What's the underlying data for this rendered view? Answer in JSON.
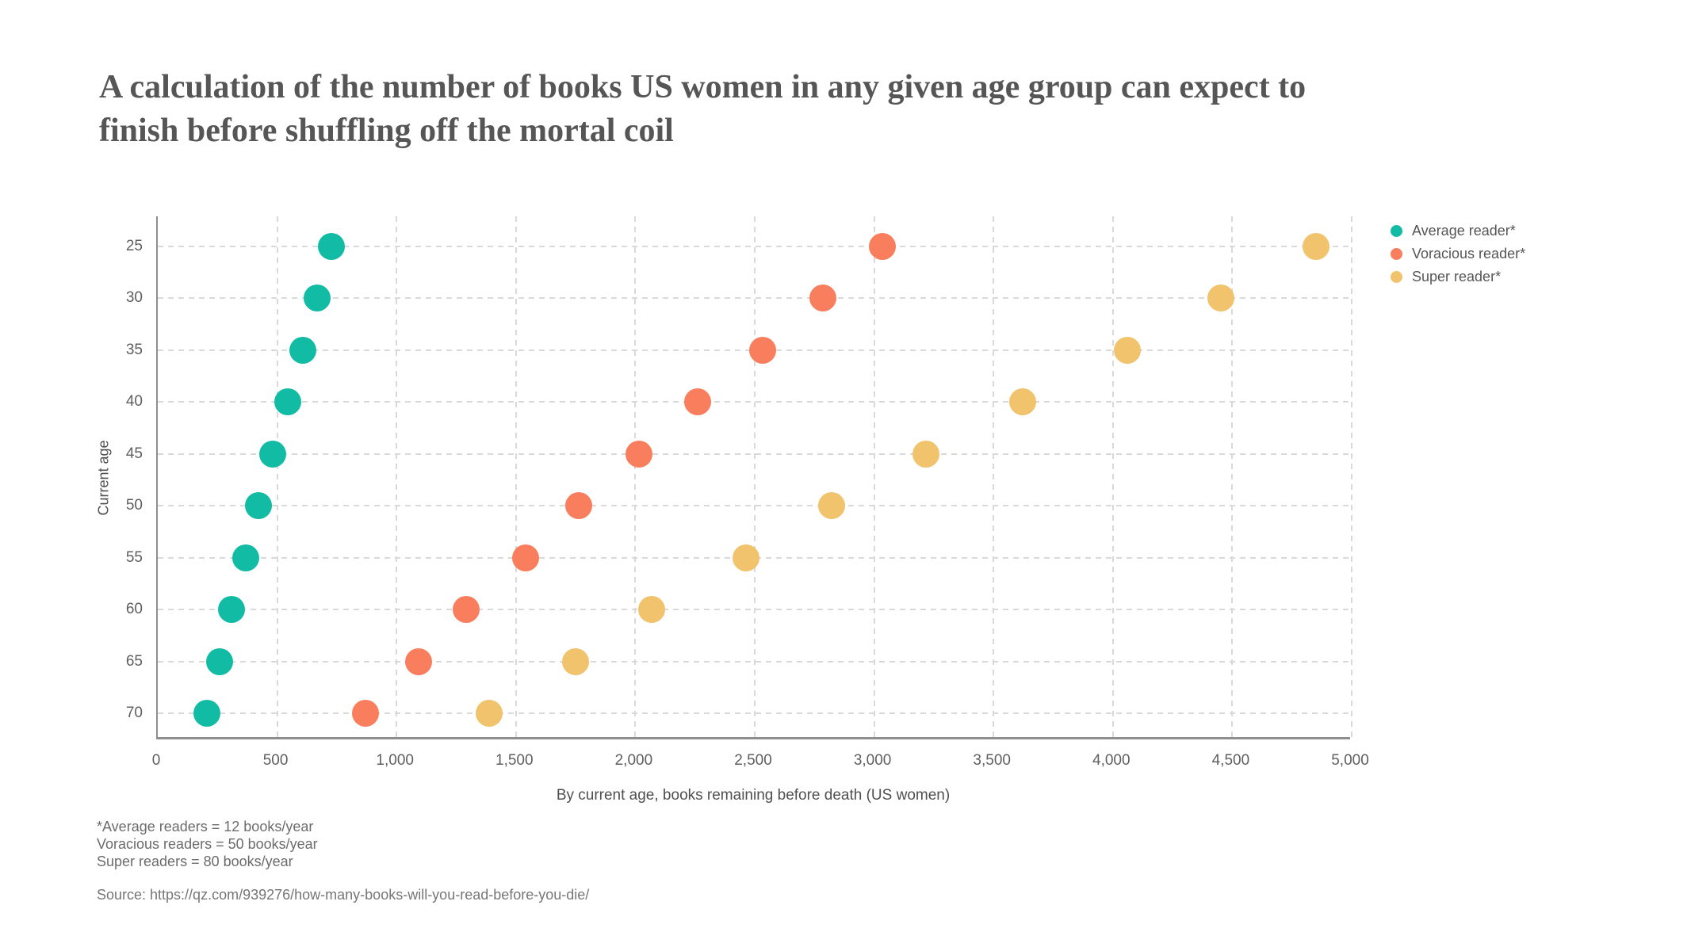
{
  "title": {
    "lines": [
      "A calculation of the number of books US women in any given age group can expect to",
      "finish before shuffling off the mortal coil"
    ]
  },
  "chart_data": {
    "type": "scatter",
    "variant": "horizontal-dot-plot",
    "title": "A calculation of the number of books US women in any given age group can expect to finish before shuffling off the mortal coil",
    "xlabel": "By current age, books remaining before death (US women)",
    "ylabel": "Current age",
    "xlim": [
      0,
      5000
    ],
    "x_tick_step": 500,
    "x_tick_labels": [
      "0",
      "500",
      "1,000",
      "1,500",
      "2,000",
      "2,500",
      "3,000",
      "3,500",
      "4,000",
      "4,500",
      "5,000"
    ],
    "y_categories": [
      "25",
      "30",
      "35",
      "40",
      "45",
      "50",
      "55",
      "60",
      "65",
      "70"
    ],
    "grid": "dashed, both directions",
    "legend_position": "outside top-right",
    "series": [
      {
        "name": "Average reader*",
        "color": "#12bca4",
        "values": [
          726,
          666,
          607,
          545,
          481,
          421,
          368,
          308,
          259,
          205
        ]
      },
      {
        "name": "Voracious reader*",
        "color": "#f87e5d",
        "values": [
          3034,
          2785,
          2533,
          2260,
          2014,
          1764,
          1541,
          1292,
          1092,
          870
        ]
      },
      {
        "name": "Super reader*",
        "color": "#f0c36c",
        "values": [
          4850,
          4453,
          4060,
          3622,
          3217,
          2823,
          2465,
          2068,
          1750,
          1388
        ]
      }
    ]
  },
  "footnotes": {
    "lines": [
      "*Average readers = 12 books/year",
      "Voracious readers = 50 books/year",
      "Super readers = 80 books/year"
    ]
  },
  "source_line": "Source: https://qz.com/939276/how-many-books-will-you-read-before-you-die/"
}
